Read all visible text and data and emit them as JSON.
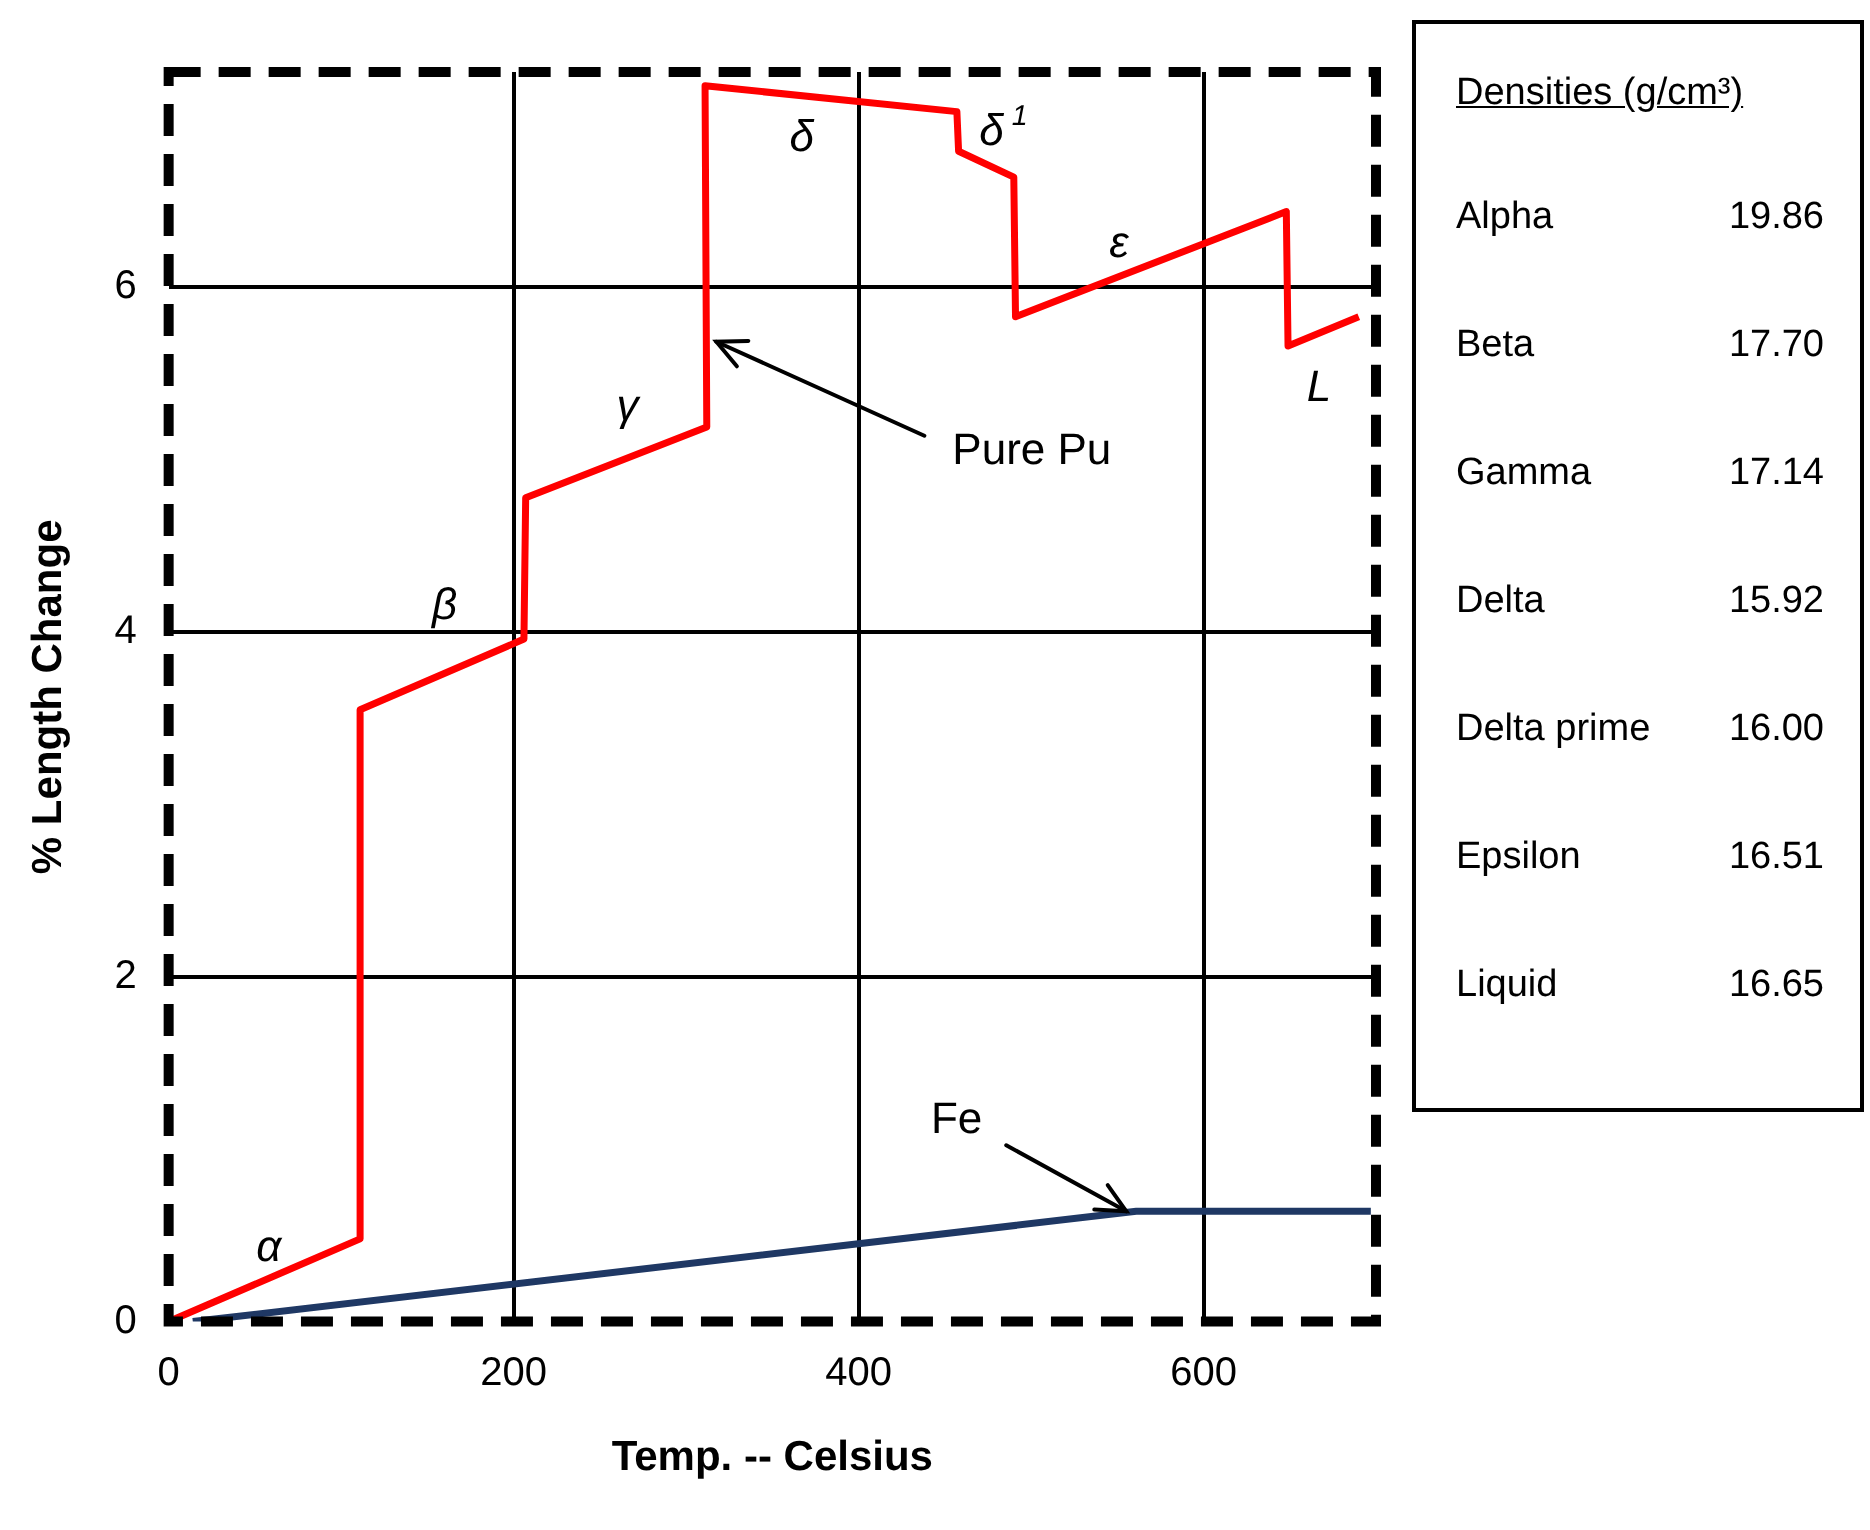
{
  "chart_data": [
    {
      "type": "line",
      "xlabel": "Temp. -- Celsius",
      "ylabel": "% Length Change",
      "xlim": [
        0,
        700
      ],
      "ylim": [
        0,
        7.25
      ],
      "xticks": [
        0,
        200,
        400,
        600
      ],
      "yticks": [
        0,
        2,
        4,
        6
      ],
      "grid": true,
      "legend": false,
      "marker": "none",
      "line_style": "solid",
      "series": [
        {
          "name": "Pure Pu",
          "color": "#ff0000",
          "x": [
            0,
            111,
            111,
            206,
            207,
            312,
            311,
            457,
            458,
            490,
            491,
            648,
            649,
            690
          ],
          "values": [
            0,
            0.48,
            3.55,
            3.96,
            4.78,
            5.19,
            7.17,
            7.02,
            6.79,
            6.64,
            5.83,
            6.44,
            5.66,
            5.83
          ]
        },
        {
          "name": "Fe",
          "color": "#1f3864",
          "x": [
            14,
            561,
            697
          ],
          "values": [
            0,
            0.64,
            0.64
          ]
        }
      ],
      "annotations": [
        "α",
        "β",
        "γ",
        "δ",
        "δ$^{1}$",
        "ε",
        "L"
      ]
    },
    {
      "type": "other",
      "title": "Densities (g/cm³)",
      "annotations": [
        "Alpha",
        "19.86",
        "Beta",
        "17.70",
        "Gamma",
        "17.14",
        "Delta",
        "15.92",
        "Delta prime",
        "16.00",
        "Epsilon",
        "16.51",
        "Liquid",
        "16.65"
      ]
    }
  ]
}
